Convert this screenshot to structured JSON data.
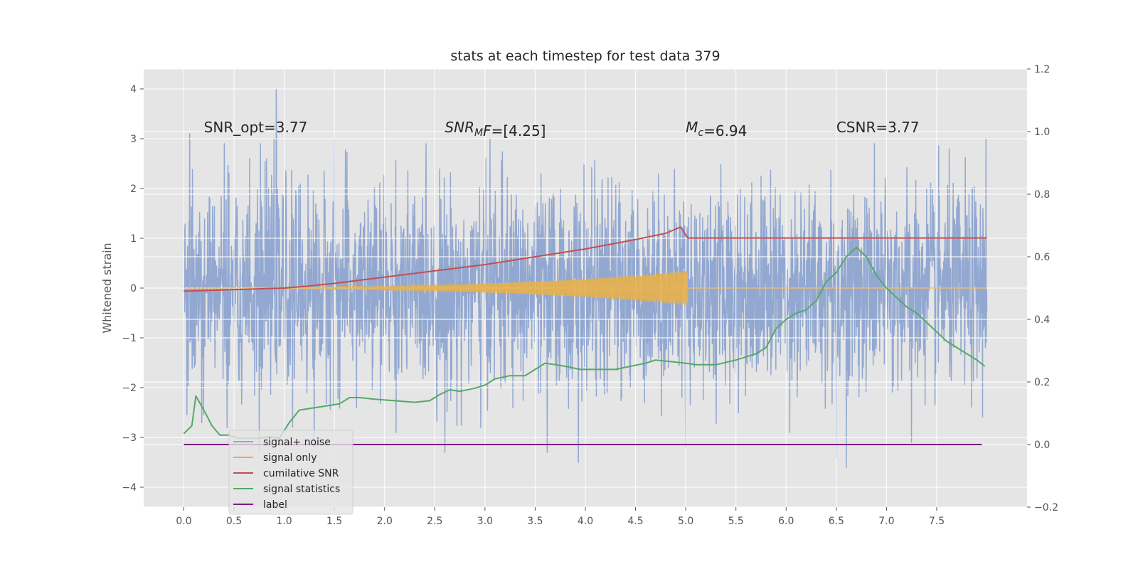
{
  "chart_data": {
    "type": "line",
    "title": "stats at each timestep for test data 379",
    "xlabel": "",
    "ylabel": "Whitened strain",
    "y2label": "",
    "xlim": [
      -0.4,
      8.4
    ],
    "ylim": [
      -4.4,
      4.4
    ],
    "y2lim": [
      -0.2,
      1.2
    ],
    "xticks": [
      0.0,
      0.5,
      1.0,
      1.5,
      2.0,
      2.5,
      3.0,
      3.5,
      4.0,
      4.5,
      5.0,
      5.5,
      6.0,
      6.5,
      7.0,
      7.5
    ],
    "xtick_labels": [
      "0.0",
      "0.5",
      "1.0",
      "1.5",
      "2.0",
      "2.5",
      "3.0",
      "3.5",
      "4.0",
      "4.5",
      "5.0",
      "5.5",
      "6.0",
      "6.5",
      "7.0",
      "7.5"
    ],
    "yticks": [
      -4,
      -3,
      -2,
      -1,
      0,
      1,
      2,
      3,
      4
    ],
    "ytick_labels": [
      "−4",
      "−3",
      "−2",
      "−1",
      "0",
      "1",
      "2",
      "3",
      "4"
    ],
    "y2ticks": [
      -0.2,
      0.0,
      0.2,
      0.4,
      0.6,
      0.8,
      1.0,
      1.2
    ],
    "y2tick_labels": [
      "−0.2",
      "0.0",
      "0.2",
      "0.4",
      "0.6",
      "0.8",
      "1.0",
      "1.2"
    ],
    "grid": true,
    "legend_position": "lower-left",
    "annotations": [
      {
        "name": "snr-opt-annotation",
        "x": 0.2,
        "y": 3.2,
        "text": "SNR_opt=3.77",
        "italic_prefix": "",
        "sub": ""
      },
      {
        "name": "snr-mf-annotation",
        "x": 2.6,
        "y": 3.2,
        "text": "=[4.25]",
        "italic_prefix": "SNR",
        "sub": "M",
        "italic_suffix": "F"
      },
      {
        "name": "mc-annotation",
        "x": 5.0,
        "y": 3.2,
        "text": "=6.94",
        "italic_prefix": "M",
        "sub": "c"
      },
      {
        "name": "csnr-annotation",
        "x": 6.5,
        "y": 3.2,
        "text": "CSNR=3.77",
        "italic_prefix": "",
        "sub": ""
      }
    ],
    "series": [
      {
        "name": "signal+ noise",
        "axis": "left",
        "color": "#92a8d1",
        "style": "noise",
        "x_start": 0.0,
        "x_end": 8.0,
        "amplitude_typical": 1.0,
        "peaks": [
          {
            "x": 0.06,
            "y": 3.1
          },
          {
            "x": 0.92,
            "y": 4.0
          },
          {
            "x": 0.9,
            "y": 3.0
          },
          {
            "x": 1.5,
            "y": 3.0
          },
          {
            "x": 3.05,
            "y": 3.0
          },
          {
            "x": 3.62,
            "y": -3.3
          },
          {
            "x": 3.93,
            "y": -3.5
          },
          {
            "x": 5.0,
            "y": -3.2
          },
          {
            "x": 6.5,
            "y": -3.4
          },
          {
            "x": 6.6,
            "y": -3.6
          },
          {
            "x": 7.25,
            "y": -3.1
          },
          {
            "x": 7.99,
            "y": 3.0
          },
          {
            "x": 1.3,
            "y": -3.2
          },
          {
            "x": 2.6,
            "y": -3.3
          },
          {
            "x": 0.75,
            "y": -3.3
          }
        ]
      },
      {
        "name": "signal only",
        "axis": "left",
        "color": "#e8b04a",
        "style": "chirp",
        "x_start": 0.0,
        "x_end": 5.02,
        "amplitude_start": 0.02,
        "amplitude_end": 0.35
      },
      {
        "name": "cumilative SNR",
        "axis": "right",
        "color": "#c44e52",
        "x": [
          0.0,
          0.5,
          1.0,
          1.2,
          1.5,
          2.0,
          2.5,
          3.0,
          3.5,
          4.0,
          4.5,
          4.8,
          4.95,
          5.02,
          5.5,
          6.0,
          6.5,
          7.0,
          7.5,
          8.0
        ],
        "y": [
          0.49,
          0.495,
          0.5,
          0.505,
          0.515,
          0.535,
          0.555,
          0.575,
          0.6,
          0.625,
          0.655,
          0.675,
          0.695,
          0.66,
          0.66,
          0.66,
          0.66,
          0.66,
          0.66,
          0.66
        ]
      },
      {
        "name": "signal statistics",
        "axis": "right",
        "color": "#55a868",
        "x": [
          0.0,
          0.08,
          0.12,
          0.2,
          0.28,
          0.36,
          0.45,
          0.55,
          0.65,
          0.75,
          0.85,
          0.95,
          1.05,
          1.15,
          1.25,
          1.35,
          1.45,
          1.55,
          1.65,
          1.75,
          1.9,
          2.1,
          2.3,
          2.45,
          2.55,
          2.65,
          2.75,
          2.9,
          3.0,
          3.1,
          3.25,
          3.4,
          3.5,
          3.6,
          3.7,
          3.8,
          3.95,
          4.1,
          4.3,
          4.45,
          4.6,
          4.7,
          4.85,
          5.0,
          5.1,
          5.3,
          5.5,
          5.7,
          5.8,
          5.9,
          6.0,
          6.1,
          6.2,
          6.3,
          6.4,
          6.5,
          6.6,
          6.7,
          6.8,
          6.9,
          7.0,
          7.1,
          7.2,
          7.3,
          7.4,
          7.5,
          7.6,
          7.7,
          7.8,
          7.9,
          7.98
        ],
        "y": [
          0.035,
          0.06,
          0.155,
          0.11,
          0.06,
          0.03,
          0.03,
          0.02,
          0.02,
          0.02,
          0.025,
          0.02,
          0.07,
          0.11,
          0.115,
          0.12,
          0.125,
          0.13,
          0.15,
          0.15,
          0.145,
          0.14,
          0.135,
          0.14,
          0.16,
          0.175,
          0.17,
          0.18,
          0.19,
          0.21,
          0.22,
          0.22,
          0.24,
          0.26,
          0.255,
          0.25,
          0.24,
          0.24,
          0.24,
          0.25,
          0.26,
          0.27,
          0.265,
          0.26,
          0.255,
          0.255,
          0.27,
          0.29,
          0.31,
          0.37,
          0.4,
          0.42,
          0.43,
          0.46,
          0.52,
          0.55,
          0.6,
          0.63,
          0.6,
          0.54,
          0.5,
          0.47,
          0.44,
          0.42,
          0.39,
          0.36,
          0.33,
          0.31,
          0.29,
          0.27,
          0.25
        ]
      },
      {
        "name": "label",
        "axis": "right",
        "color": "#7b1f85",
        "x": [
          0.0,
          7.95
        ],
        "y": [
          0.0,
          0.0
        ]
      }
    ]
  }
}
